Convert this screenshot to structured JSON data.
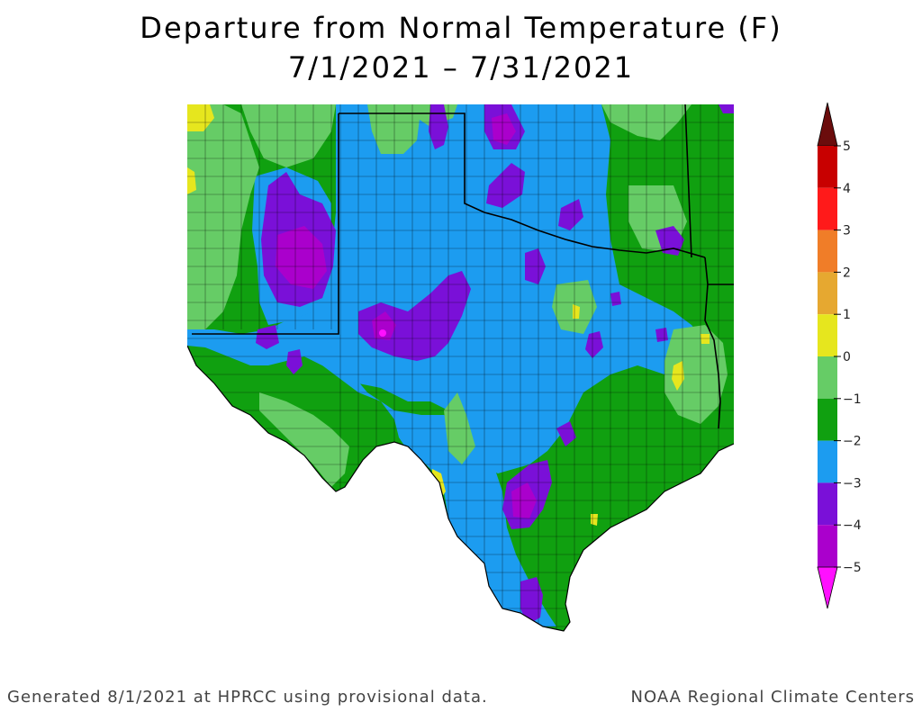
{
  "title_line1": "Departure from Normal Temperature (F)",
  "title_line2": "7/1/2021 – 7/31/2021",
  "footer_left": "Generated 8/1/2021 at HPRCC using provisional data.",
  "footer_right": "NOAA Regional Climate Centers",
  "colors": {
    "c_gt5": "#6b0c0c",
    "c_4_5": "#c80000",
    "c_3_4": "#ff1a1a",
    "c_2_3": "#f07d28",
    "c_1_2": "#e6a830",
    "c_0_1": "#e6e61e",
    "c_m1_0": "#66cc66",
    "c_m2_m1": "#10a010",
    "c_m3_m2": "#1c9cf0",
    "c_m4_m3": "#7a10d8",
    "c_m5_m4": "#aa00cc",
    "c_lt_m5": "#ff10ff"
  },
  "legend": {
    "ticks": [
      "5",
      "4",
      "3",
      "2",
      "1",
      "0",
      "−1",
      "−2",
      "−3",
      "−4",
      "−5"
    ]
  }
}
